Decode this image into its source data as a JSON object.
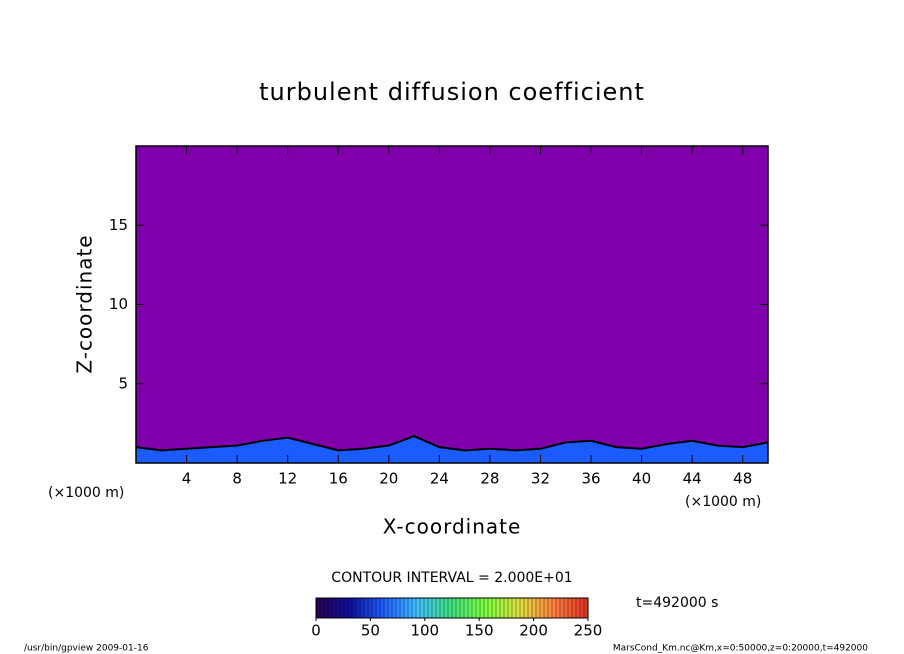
{
  "chart_data": {
    "type": "contour",
    "title": "turbulent diffusion coefficient",
    "x_label": "X-coordinate",
    "y_label": "Z-coordinate",
    "x_unit": "(×1000 m)",
    "y_unit": "(×1000 m)",
    "x": [
      0,
      2,
      4,
      6,
      8,
      10,
      12,
      14,
      16,
      18,
      20,
      22,
      24,
      26,
      28,
      30,
      32,
      34,
      36,
      38,
      40,
      42,
      44,
      46,
      48,
      50
    ],
    "values": [
      1.0,
      0.8,
      0.9,
      1.0,
      1.1,
      1.4,
      1.6,
      1.2,
      0.8,
      0.9,
      1.1,
      1.7,
      1.0,
      0.8,
      0.9,
      0.8,
      0.9,
      1.3,
      1.4,
      1.0,
      0.9,
      1.2,
      1.4,
      1.1,
      1.0,
      1.3
    ],
    "background_color": "#7f00aa",
    "color": "#1a5cff",
    "xlim": [
      0,
      50
    ],
    "xticks": [
      4,
      8,
      12,
      16,
      20,
      24,
      28,
      32,
      36,
      40,
      44,
      48
    ],
    "ylim": [
      0,
      20
    ],
    "yticks": [
      5,
      10,
      15
    ],
    "contour_interval": "CONTOUR INTERVAL = 2.000E+01",
    "time_label": "t=492000 s",
    "colorbar": {
      "clim": [
        0,
        250
      ],
      "ticks": [
        0,
        50,
        100,
        150,
        200,
        250
      ],
      "colors": [
        "#2a0050",
        "#1010a0",
        "#2060ff",
        "#40c0ff",
        "#40e080",
        "#80ff40",
        "#e0e040",
        "#ff8040",
        "#e03020"
      ]
    },
    "footer_left": "/usr/bin/gpview  2009-01-16",
    "footer_right": "MarsCond_Km.nc@Km,x=0:50000,z=0:20000,t=492000"
  }
}
